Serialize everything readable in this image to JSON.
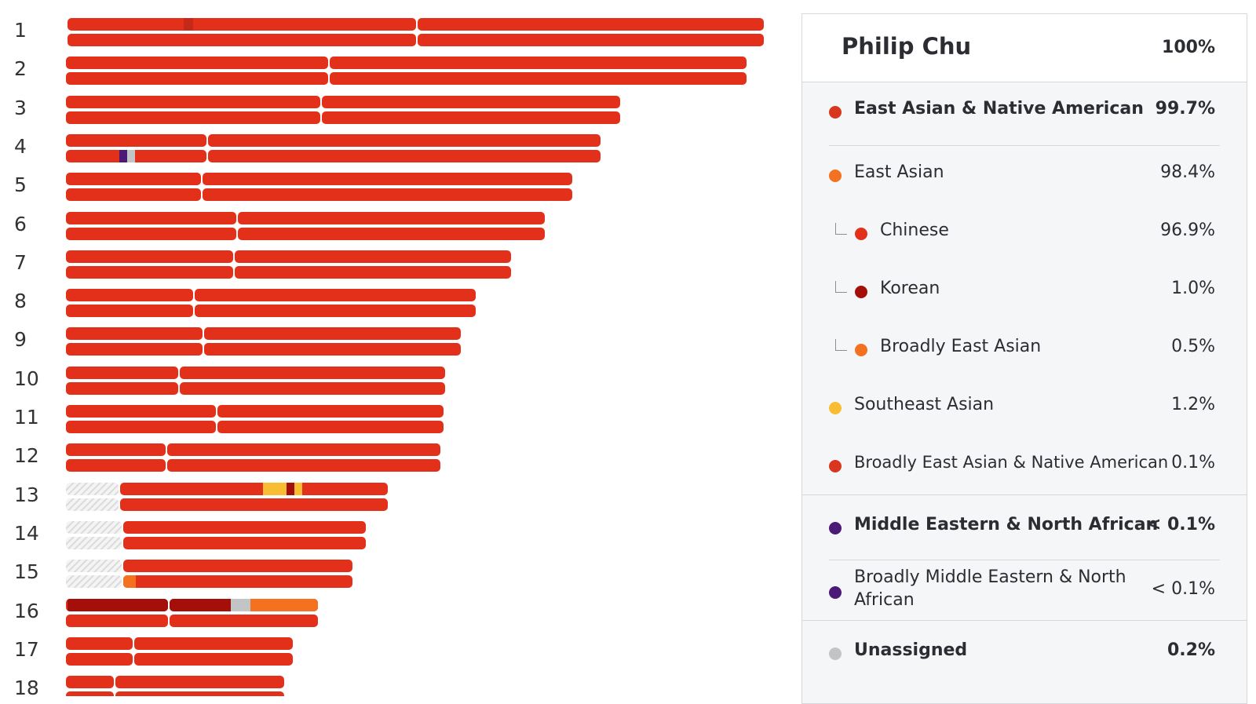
{
  "colors": {
    "east_asian_native_american": "#d9361f",
    "east_asian": "#f4711f",
    "chinese": "#e3301b",
    "korean": "#a50f0a",
    "broadly_east_asian": "#f4711f",
    "southeast_asian": "#f9bd34",
    "mena": "#4b1a76",
    "unassigned": "#c3c4c6"
  },
  "chromosomes": [
    {
      "label": "1"
    },
    {
      "label": "2"
    },
    {
      "label": "3"
    },
    {
      "label": "4"
    },
    {
      "label": "5"
    },
    {
      "label": "6"
    },
    {
      "label": "7"
    },
    {
      "label": "8"
    },
    {
      "label": "9"
    },
    {
      "label": "10"
    },
    {
      "label": "11"
    },
    {
      "label": "12"
    },
    {
      "label": "13"
    },
    {
      "label": "14"
    },
    {
      "label": "15"
    },
    {
      "label": "16"
    },
    {
      "label": "17"
    },
    {
      "label": "18"
    }
  ],
  "panel": {
    "name": "Philip Chu",
    "total": "100%",
    "rows": {
      "east_asian_native_american": {
        "label": "East Asian & Native American",
        "value": "99.7%",
        "icon": "dot"
      },
      "east_asian": {
        "label": "East Asian",
        "value": "98.4%",
        "icon": "dot"
      },
      "chinese": {
        "label": "Chinese",
        "value": "96.9%",
        "icon": "dot"
      },
      "korean": {
        "label": "Korean",
        "value": "1.0%",
        "icon": "dot"
      },
      "broadly_east_asian": {
        "label": "Broadly East Asian",
        "value": "0.5%",
        "icon": "dot"
      },
      "southeast_asian": {
        "label": "Southeast Asian",
        "value": "1.2%",
        "icon": "dot"
      },
      "broadly_eana": {
        "label": "Broadly East Asian & Native American",
        "value": "0.1%",
        "icon": "dot"
      },
      "mena": {
        "label": "Middle Eastern & North African",
        "value": "< 0.1%",
        "icon": "dot"
      },
      "broadly_mena": {
        "label": "Broadly Middle Eastern & North African",
        "value": "< 0.1%",
        "icon": "dot"
      },
      "unassigned": {
        "label": "Unassigned",
        "value": "0.2%",
        "icon": "dot"
      }
    }
  }
}
